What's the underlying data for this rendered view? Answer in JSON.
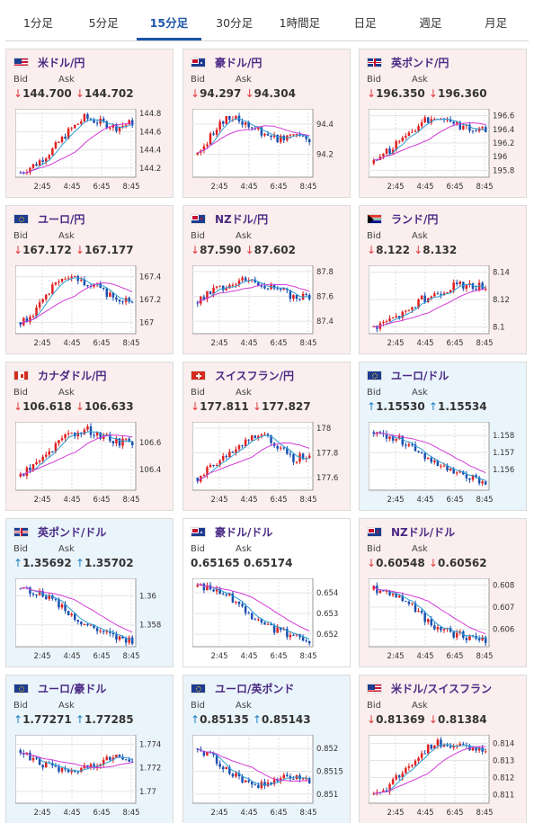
{
  "tabs": [
    {
      "label": "1分足",
      "active": false
    },
    {
      "label": "5分足",
      "active": false
    },
    {
      "label": "15分足",
      "active": true
    },
    {
      "label": "30分足",
      "active": false
    },
    {
      "label": "1時間足",
      "active": false
    },
    {
      "label": "日足",
      "active": false
    },
    {
      "label": "週足",
      "active": false
    },
    {
      "label": "月足",
      "active": false
    }
  ],
  "colors": {
    "up_candle": "#e02020",
    "down_candle": "#1a4fb0",
    "ma_short": "#2a9fd6",
    "ma_long": "#d23bd6",
    "card_down_bg": "#fbeeee",
    "card_up_bg": "#eaf4fb",
    "accent": "#1a56a8"
  },
  "x_ticks": [
    "2:45",
    "4:45",
    "6:45",
    "8:45"
  ],
  "labels": {
    "bid": "Bid",
    "ask": "Ask"
  },
  "pairs": [
    {
      "name": "米ドル/円",
      "flag": "us",
      "direction": "down",
      "bid": "144.700",
      "ask": "144.702",
      "yticks": [
        "144.8",
        "144.6",
        "144.4",
        "144.2"
      ],
      "chart_data": {
        "type": "line",
        "ylim": [
          144.1,
          144.85
        ],
        "trend": [
          144.15,
          144.25,
          144.4,
          144.6,
          144.75,
          144.7,
          144.65,
          144.7
        ]
      }
    },
    {
      "name": "豪ドル/円",
      "flag": "au",
      "direction": "down",
      "bid": "94.297",
      "ask": "94.304",
      "yticks": [
        "94.4",
        "94.2"
      ],
      "chart_data": {
        "type": "line",
        "ylim": [
          94.05,
          94.5
        ],
        "trend": [
          94.2,
          94.35,
          94.45,
          94.4,
          94.35,
          94.3,
          94.35,
          94.3
        ]
      }
    },
    {
      "name": "英ポンド/円",
      "flag": "gb",
      "direction": "down",
      "bid": "196.350",
      "ask": "196.360",
      "yticks": [
        "196.6",
        "196.4",
        "196.2",
        "196",
        "195.8"
      ],
      "chart_data": {
        "type": "line",
        "ylim": [
          195.7,
          196.7
        ],
        "trend": [
          195.9,
          196.1,
          196.3,
          196.5,
          196.6,
          196.5,
          196.4,
          196.4
        ]
      }
    },
    {
      "name": "ユーロ/円",
      "flag": "eu",
      "direction": "down",
      "bid": "167.172",
      "ask": "167.177",
      "yticks": [
        "167.4",
        "167.2",
        "167"
      ],
      "chart_data": {
        "type": "line",
        "ylim": [
          166.9,
          167.5
        ],
        "trend": [
          167.0,
          167.1,
          167.3,
          167.4,
          167.35,
          167.3,
          167.2,
          167.2
        ]
      }
    },
    {
      "name": "NZドル/円",
      "flag": "nz",
      "direction": "down",
      "bid": "87.590",
      "ask": "87.602",
      "yticks": [
        "87.8",
        "87.6",
        "87.4"
      ],
      "chart_data": {
        "type": "line",
        "ylim": [
          87.3,
          87.85
        ],
        "trend": [
          87.55,
          87.65,
          87.7,
          87.75,
          87.7,
          87.65,
          87.6,
          87.6
        ]
      }
    },
    {
      "name": "ランド/円",
      "flag": "za",
      "direction": "down",
      "bid": "8.122",
      "ask": "8.132",
      "yticks": [
        "8.14",
        "8.12",
        "8.1"
      ],
      "chart_data": {
        "type": "line",
        "ylim": [
          8.095,
          8.145
        ],
        "trend": [
          8.1,
          8.105,
          8.11,
          8.12,
          8.125,
          8.13,
          8.13,
          8.13
        ]
      }
    },
    {
      "name": "カナダドル/円",
      "flag": "ca",
      "direction": "down",
      "bid": "106.618",
      "ask": "106.633",
      "yticks": [
        "106.6",
        "106.4"
      ],
      "chart_data": {
        "type": "line",
        "ylim": [
          106.25,
          106.75
        ],
        "trend": [
          106.35,
          106.45,
          106.55,
          106.65,
          106.7,
          106.65,
          106.6,
          106.6
        ]
      }
    },
    {
      "name": "スイスフラン/円",
      "flag": "ch",
      "direction": "down",
      "bid": "177.811",
      "ask": "177.827",
      "yticks": [
        "178",
        "177.8",
        "177.6"
      ],
      "chart_data": {
        "type": "line",
        "ylim": [
          177.5,
          178.05
        ],
        "trend": [
          177.6,
          177.7,
          177.8,
          177.9,
          177.95,
          177.85,
          177.75,
          177.8
        ]
      }
    },
    {
      "name": "ユーロ/ドル",
      "flag": "eu",
      "direction": "up",
      "bid": "1.15530",
      "ask": "1.15534",
      "yticks": [
        "1.158",
        "1.157",
        "1.156"
      ],
      "chart_data": {
        "type": "line",
        "ylim": [
          1.1548,
          1.1588
        ],
        "trend": [
          1.1582,
          1.158,
          1.1576,
          1.157,
          1.1562,
          1.1558,
          1.1555,
          1.1553
        ]
      }
    },
    {
      "name": "英ポンド/ドル",
      "flag": "gb",
      "direction": "up",
      "bid": "1.35692",
      "ask": "1.35702",
      "yticks": [
        "1.36",
        "1.358"
      ],
      "chart_data": {
        "type": "line",
        "ylim": [
          1.3565,
          1.3612
        ],
        "trend": [
          1.3605,
          1.3602,
          1.3598,
          1.3588,
          1.358,
          1.3575,
          1.357,
          1.3569
        ]
      }
    },
    {
      "name": "豪ドル/ドル",
      "flag": "au",
      "direction": "none",
      "bid": "0.65165",
      "ask": "0.65174",
      "yticks": [
        "0.654",
        "0.653",
        "0.652"
      ],
      "chart_data": {
        "type": "line",
        "ylim": [
          0.6514,
          0.6547
        ],
        "trend": [
          0.6543,
          0.6542,
          0.6538,
          0.6532,
          0.6525,
          0.6522,
          0.6519,
          0.6517
        ]
      }
    },
    {
      "name": "NZドル/ドル",
      "flag": "nz",
      "direction": "down",
      "bid": "0.60548",
      "ask": "0.60562",
      "yticks": [
        "0.608",
        "0.607",
        "0.606"
      ],
      "chart_data": {
        "type": "line",
        "ylim": [
          0.6052,
          0.6083
        ],
        "trend": [
          0.6078,
          0.6077,
          0.6073,
          0.6066,
          0.606,
          0.6058,
          0.6056,
          0.6055
        ]
      }
    },
    {
      "name": "ユーロ/豪ドル",
      "flag": "eu",
      "direction": "up",
      "bid": "1.77271",
      "ask": "1.77285",
      "yticks": [
        "1.774",
        "1.772",
        "1.77"
      ],
      "chart_data": {
        "type": "line",
        "ylim": [
          1.769,
          1.7748
        ],
        "trend": [
          1.7735,
          1.7725,
          1.772,
          1.7715,
          1.772,
          1.7725,
          1.7728,
          1.7727
        ]
      }
    },
    {
      "name": "ユーロ/英ポンド",
      "flag": "eu",
      "direction": "up",
      "bid": "0.85135",
      "ask": "0.85143",
      "yticks": [
        "0.852",
        "0.8515",
        "0.851"
      ],
      "chart_data": {
        "type": "line",
        "ylim": [
          0.8508,
          0.8523
        ],
        "trend": [
          0.852,
          0.8518,
          0.8515,
          0.8513,
          0.8512,
          0.8513,
          0.8514,
          0.8513
        ]
      }
    },
    {
      "name": "米ドル/スイスフラン",
      "flag": "us",
      "direction": "down",
      "bid": "0.81369",
      "ask": "0.81384",
      "yticks": [
        "0.814",
        "0.813",
        "0.812",
        "0.811"
      ],
      "chart_data": {
        "type": "line",
        "ylim": [
          0.8105,
          0.8145
        ],
        "trend": [
          0.811,
          0.8115,
          0.8125,
          0.8135,
          0.814,
          0.8138,
          0.8137,
          0.8137
        ]
      }
    }
  ]
}
